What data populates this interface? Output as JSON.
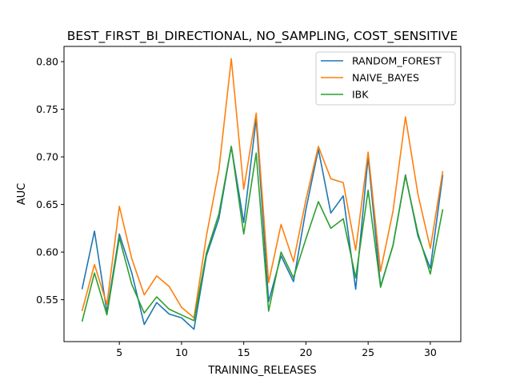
{
  "chart_data": {
    "type": "line",
    "title": "BEST_FIRST_BI_DIRECTIONAL, NO_SAMPLING, COST_SENSITIVE",
    "xlabel": "TRAINING_RELEASES",
    "ylabel": "AUC",
    "xlim": [
      0.55,
      32.45
    ],
    "ylim": [
      0.506,
      0.816
    ],
    "xticks": [
      5,
      10,
      15,
      20,
      25,
      30
    ],
    "yticks": [
      0.55,
      0.6,
      0.65,
      0.7,
      0.75,
      0.8
    ],
    "ytick_labels": [
      "0.55",
      "0.60",
      "0.65",
      "0.70",
      "0.75",
      "0.80"
    ],
    "legend_position": "upper right",
    "x": [
      2,
      3,
      4,
      5,
      6,
      7,
      8,
      9,
      10,
      11,
      12,
      13,
      14,
      15,
      16,
      17,
      18,
      19,
      20,
      21,
      22,
      23,
      24,
      25,
      26,
      27,
      28,
      29,
      30,
      31
    ],
    "series": [
      {
        "name": "RANDOM_FOREST",
        "color": "#1f77b4",
        "values": [
          0.561,
          0.622,
          0.537,
          0.619,
          0.578,
          0.524,
          0.547,
          0.535,
          0.531,
          0.519,
          0.596,
          0.635,
          0.711,
          0.631,
          0.74,
          0.548,
          0.596,
          0.569,
          0.645,
          0.708,
          0.641,
          0.659,
          0.561,
          0.7,
          0.564,
          0.607,
          0.681,
          0.617,
          0.583,
          0.681
        ]
      },
      {
        "name": "NAIVE_BAYES",
        "color": "#ff7f0e",
        "values": [
          0.538,
          0.587,
          0.545,
          0.648,
          0.593,
          0.555,
          0.575,
          0.564,
          0.542,
          0.531,
          0.617,
          0.686,
          0.803,
          0.666,
          0.746,
          0.568,
          0.629,
          0.59,
          0.655,
          0.711,
          0.677,
          0.673,
          0.602,
          0.705,
          0.58,
          0.643,
          0.742,
          0.661,
          0.604,
          0.685
        ]
      },
      {
        "name": "IBK",
        "color": "#2ca02c",
        "values": [
          0.527,
          0.578,
          0.534,
          0.615,
          0.566,
          0.536,
          0.553,
          0.54,
          0.534,
          0.528,
          0.599,
          0.64,
          0.711,
          0.619,
          0.704,
          0.538,
          0.6,
          0.573,
          0.614,
          0.653,
          0.625,
          0.635,
          0.573,
          0.665,
          0.563,
          0.607,
          0.68,
          0.62,
          0.577,
          0.645
        ]
      }
    ]
  }
}
